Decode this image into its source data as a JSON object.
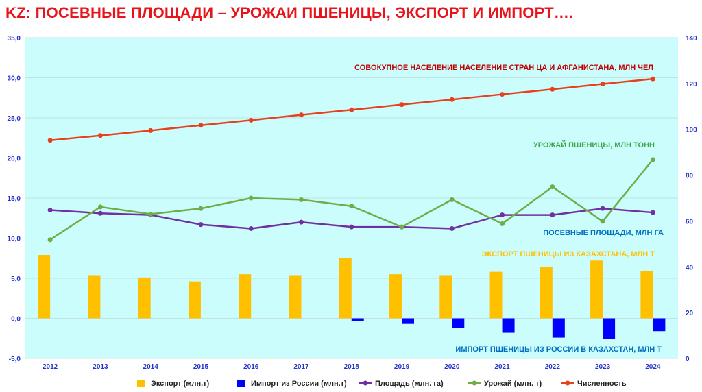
{
  "chart_data": {
    "type": "bar+line",
    "title": "KZ: ПОСЕВНЫЕ ПЛОЩАДИ – УРОЖАИ ПШЕНИЦЫ, ЭКСПОРТ И ИМПОРТ….",
    "categories": [
      "2012",
      "2013",
      "2014",
      "2015",
      "2016",
      "2017",
      "2018",
      "2019",
      "2020",
      "2021",
      "2022",
      "2023",
      "2024"
    ],
    "y_left": {
      "min": -5,
      "max": 35,
      "step": 5,
      "ticks": [
        "-5,0",
        "0,0",
        "5,0",
        "10,0",
        "15,0",
        "20,0",
        "25,0",
        "30,0",
        "35,0"
      ]
    },
    "y_right": {
      "min": 0,
      "max": 140,
      "step": 20,
      "ticks": [
        "0",
        "20",
        "40",
        "60",
        "80",
        "100",
        "120",
        "140"
      ]
    },
    "grid": true,
    "legend_placement": "bottom",
    "series": [
      {
        "name": "Экспорт (млн.т)",
        "type": "bar",
        "axis": "left",
        "color": "#ffc000",
        "values": [
          7.9,
          5.3,
          5.1,
          4.6,
          5.5,
          5.3,
          7.5,
          5.5,
          5.3,
          5.8,
          6.4,
          7.2,
          5.9
        ]
      },
      {
        "name": "Импорт из России (млн.т)",
        "type": "bar",
        "axis": "left",
        "color": "#0000ff",
        "values": [
          0,
          0,
          0,
          0,
          0,
          0,
          -0.3,
          -0.7,
          -1.2,
          -1.8,
          -2.4,
          -2.6,
          -1.6
        ]
      },
      {
        "name": "Площадь (млн. га)",
        "type": "line",
        "axis": "left",
        "color": "#7030a0",
        "values": [
          13.5,
          13.1,
          12.9,
          11.7,
          11.2,
          12.0,
          11.4,
          11.4,
          11.2,
          12.9,
          12.9,
          13.7,
          13.2
        ]
      },
      {
        "name": "Урожай (млн. т)",
        "type": "line",
        "axis": "left",
        "color": "#70ad47",
        "values": [
          9.8,
          13.9,
          13.0,
          13.7,
          15.0,
          14.8,
          14.0,
          11.4,
          14.8,
          11.8,
          16.4,
          12.1,
          19.8
        ]
      },
      {
        "name": "Численность",
        "type": "line",
        "axis": "right",
        "color": "#e8401c",
        "values": [
          95.2,
          97.3,
          99.5,
          101.8,
          104.0,
          106.3,
          108.5,
          110.8,
          113.0,
          115.3,
          117.5,
          119.8,
          122.0
        ]
      }
    ],
    "annotations": [
      {
        "text": "СОВОКУПНОЕ НАСЕЛЕНИЕ НАСЕЛЕНИЕ СТРАН ЦА И АФГАНИСТАНА, МЛН ЧЕЛ",
        "color": "#c00000"
      },
      {
        "text": "УРОЖАЙ ПШЕНИЦЫ, МЛН ТОНН",
        "color": "#3aa84a"
      },
      {
        "text": "ПОСЕВНЫЕ ПЛОЩАДИ, МЛН ГА",
        "color": "#0070c0"
      },
      {
        "text": "ЭКСПОРТ ПШЕНИЦЫ ИЗ КАЗАХСТАНА, МЛН Т",
        "color": "#ffc000"
      },
      {
        "text": "ИМПОРТ ПШЕНИЦЫ ИЗ РОССИИ В КАЗАХСТАН, МЛН Т",
        "color": "#0070c0"
      }
    ]
  }
}
